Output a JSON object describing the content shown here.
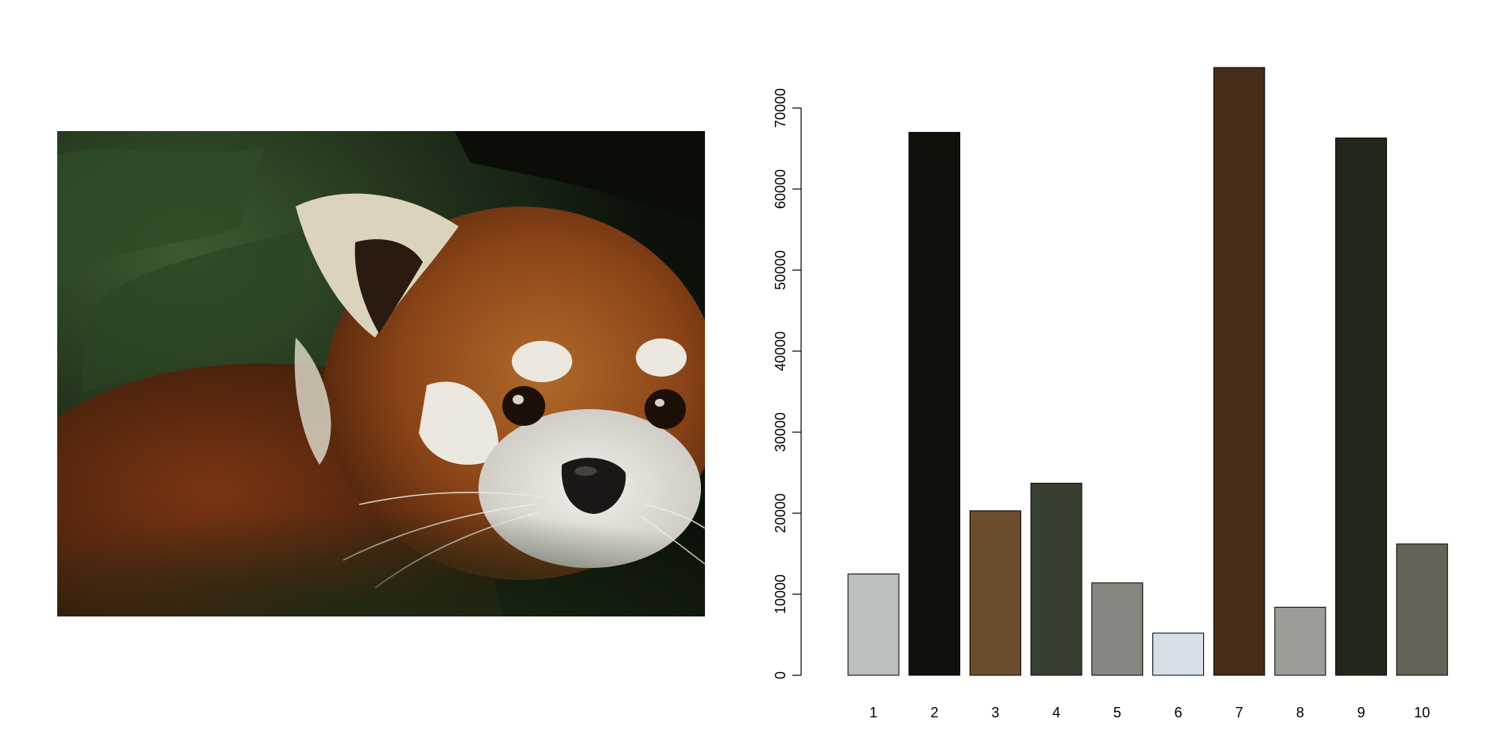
{
  "photo": {
    "subject": "red panda"
  },
  "chart_data": {
    "type": "bar",
    "title": "",
    "xlabel": "",
    "ylabel": "",
    "categories": [
      "1",
      "2",
      "3",
      "4",
      "5",
      "6",
      "7",
      "8",
      "9",
      "10"
    ],
    "values": [
      12500,
      67000,
      20300,
      23700,
      11400,
      5200,
      75000,
      8400,
      66300,
      16200
    ],
    "colors": [
      "#bbbfc0",
      "#10110b",
      "#6c4d2e",
      "#374030",
      "#838780",
      "#d6dee8",
      "#452d17",
      "#9c9d97",
      "#22271b",
      "#656355"
    ],
    "yticks": [
      0,
      10000,
      20000,
      30000,
      40000,
      50000,
      60000,
      70000
    ],
    "ylim": [
      0,
      75000
    ],
    "grid": false,
    "legend": "none"
  }
}
